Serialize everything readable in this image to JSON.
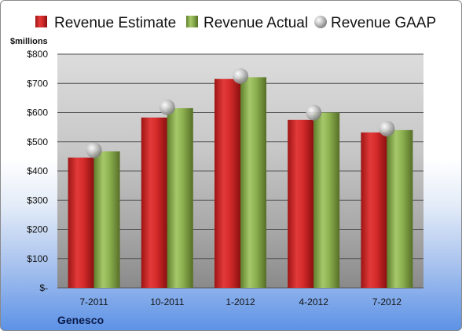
{
  "chart_data": {
    "type": "bar",
    "ylabel": "$millions",
    "footer": "Genesco",
    "categories": [
      "7-2011",
      "10-2011",
      "1-2012",
      "4-2012",
      "7-2012"
    ],
    "series": [
      {
        "name": "Revenue Estimate",
        "kind": "bar",
        "color": "#d42a2a",
        "values": [
          446,
          583,
          715,
          575,
          532
        ]
      },
      {
        "name": "Revenue Actual",
        "kind": "bar",
        "color": "#8cb04f",
        "values": [
          467,
          615,
          721,
          600,
          540
        ]
      },
      {
        "name": "Revenue GAAP",
        "kind": "marker",
        "color": "#b8b8b8",
        "values": [
          471,
          618,
          725,
          600,
          545
        ]
      }
    ],
    "ylim": [
      0,
      800
    ],
    "yticks": [
      0,
      100,
      200,
      300,
      400,
      500,
      600,
      700,
      800
    ],
    "ytick_labels": [
      "$-",
      "$100",
      "$200",
      "$300",
      "$400",
      "$500",
      "$600",
      "$700",
      "$800"
    ],
    "grid": true,
    "legend_position": "top"
  }
}
